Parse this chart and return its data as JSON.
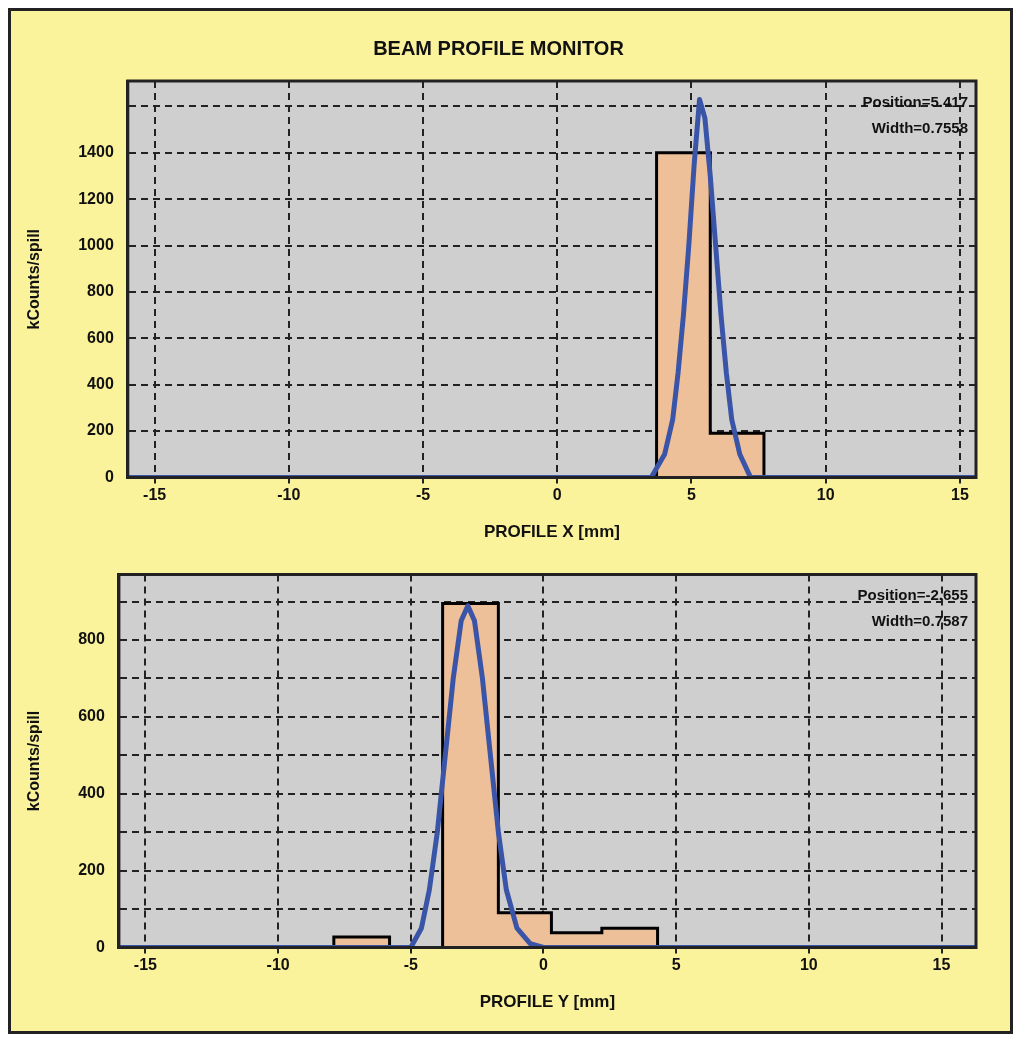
{
  "chart_data": [
    {
      "type": "histogram",
      "title": "BEAM PROFILE MONITOR",
      "xlabel": "PROFILE X [mm]",
      "ylabel": "kCounts/spill",
      "xlim": [
        -16,
        15.6
      ],
      "xticks": [
        -15,
        -10,
        -5,
        0,
        5,
        10,
        15
      ],
      "ylim": [
        0,
        1710
      ],
      "yticks": [
        0,
        200,
        400,
        600,
        800,
        1000,
        1200,
        1400,
        {
          "value": 1600,
          "label": null
        }
      ],
      "grid": true,
      "annotations": [
        "Position=5.417",
        "Width=0.7558"
      ],
      "series": [
        {
          "bins": [
            3.7,
            5.7,
            7.7
          ],
          "values": [
            1400,
            190
          ],
          "color": "#eec09a"
        },
        {
          "type": "line",
          "color": "#3a55a8",
          "x": [
            -16,
            3.5,
            4.0,
            4.3,
            4.5,
            4.7,
            4.9,
            5.1,
            5.3,
            5.5,
            5.7,
            5.9,
            6.1,
            6.3,
            6.5,
            6.8,
            7.2,
            15.6
          ],
          "values": [
            0,
            0,
            100,
            250,
            450,
            700,
            1000,
            1350,
            1630,
            1550,
            1300,
            1000,
            700,
            450,
            250,
            100,
            0,
            0
          ]
        }
      ]
    },
    {
      "type": "histogram",
      "xlabel": "PROFILE Y [mm]",
      "ylabel": "kCounts/spill",
      "xlim": [
        -16,
        16.3
      ],
      "xticks": [
        -15,
        -10,
        -5,
        0,
        5,
        10,
        15
      ],
      "ylim": [
        0,
        970
      ],
      "yticks": [
        0,
        {
          "value": 100,
          "label": null
        },
        200,
        {
          "value": 300,
          "label": null
        },
        400,
        {
          "value": 500,
          "label": null
        },
        600,
        {
          "value": 700,
          "label": null
        },
        800,
        {
          "value": 900,
          "label": null
        }
      ],
      "grid": true,
      "annotations": [
        "Position=-2.655",
        "Width=0.7587"
      ],
      "series": [
        {
          "bins": [
            -7.9,
            -5.8,
            -3.8,
            -1.7,
            0.3,
            2.2,
            4.3
          ],
          "values": [
            27,
            0,
            895,
            90,
            38,
            50
          ],
          "color": "#eec09a"
        },
        {
          "type": "line",
          "color": "#3a55a8",
          "x": [
            -16,
            -5,
            -4.6,
            -4.3,
            -4.0,
            -3.7,
            -3.4,
            -3.1,
            -2.85,
            -2.6,
            -2.3,
            -2.0,
            -1.7,
            -1.4,
            -1.0,
            -0.5,
            0,
            16.3
          ],
          "values": [
            0,
            0,
            50,
            150,
            300,
            500,
            700,
            850,
            889,
            850,
            700,
            500,
            300,
            150,
            50,
            10,
            0,
            0
          ]
        }
      ]
    }
  ]
}
